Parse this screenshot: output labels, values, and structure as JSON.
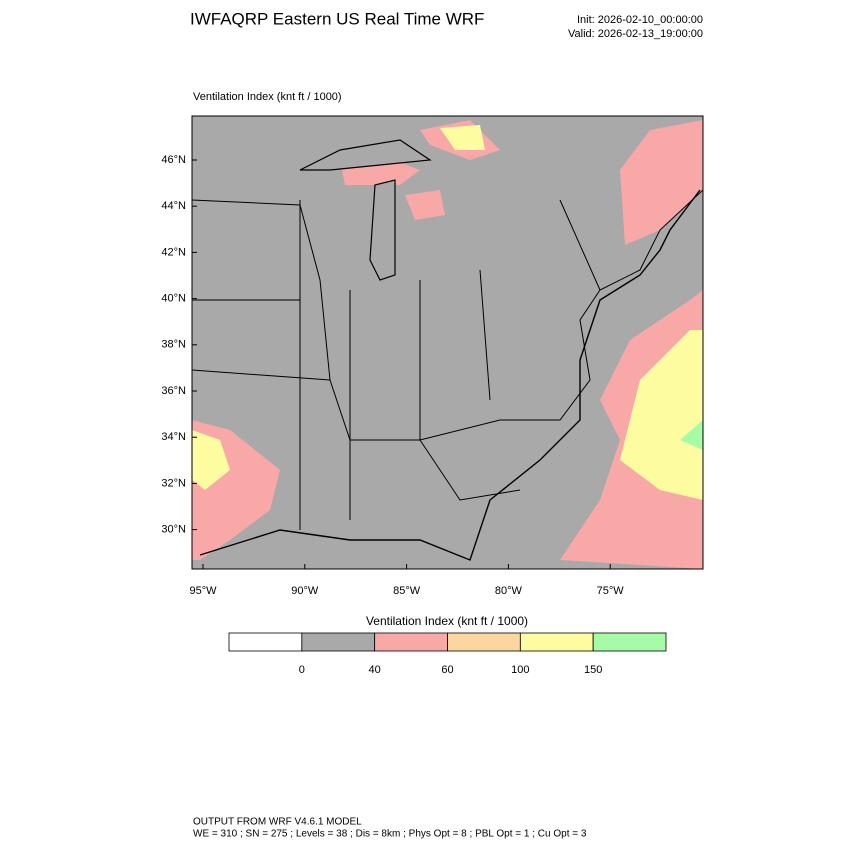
{
  "header": {
    "title": "IWFAQRP Eastern US Real Time WRF",
    "init": "Init: 2026-02-10_00:00:00",
    "valid": "Valid: 2026-02-13_19:00:00"
  },
  "map": {
    "subtitle": "Ventilation Index   (knt ft / 1000)",
    "lat_labels": [
      "46°N",
      "44°N",
      "42°N",
      "40°N",
      "38°N",
      "36°N",
      "34°N",
      "32°N",
      "30°N"
    ],
    "lon_labels": [
      "95°W",
      "90°W",
      "85°W",
      "80°W",
      "75°W"
    ]
  },
  "colorbar": {
    "title": "Ventilation Index  (knt ft / 1000)",
    "colors": [
      "#ffffff",
      "#a9a9a9",
      "#f9a8a8",
      "#fbd79f",
      "#fdfca0",
      "#a6fca6"
    ],
    "labels": [
      "0",
      "40",
      "60",
      "100",
      "150"
    ]
  },
  "footer": {
    "line1": "OUTPUT FROM WRF V4.6.1 MODEL",
    "line2": "WE = 310 ; SN = 275 ; Levels = 38 ; Dis = 8km ; Phys Opt = 8 ; PBL Opt = 1 ; Cu Opt = 3"
  }
}
